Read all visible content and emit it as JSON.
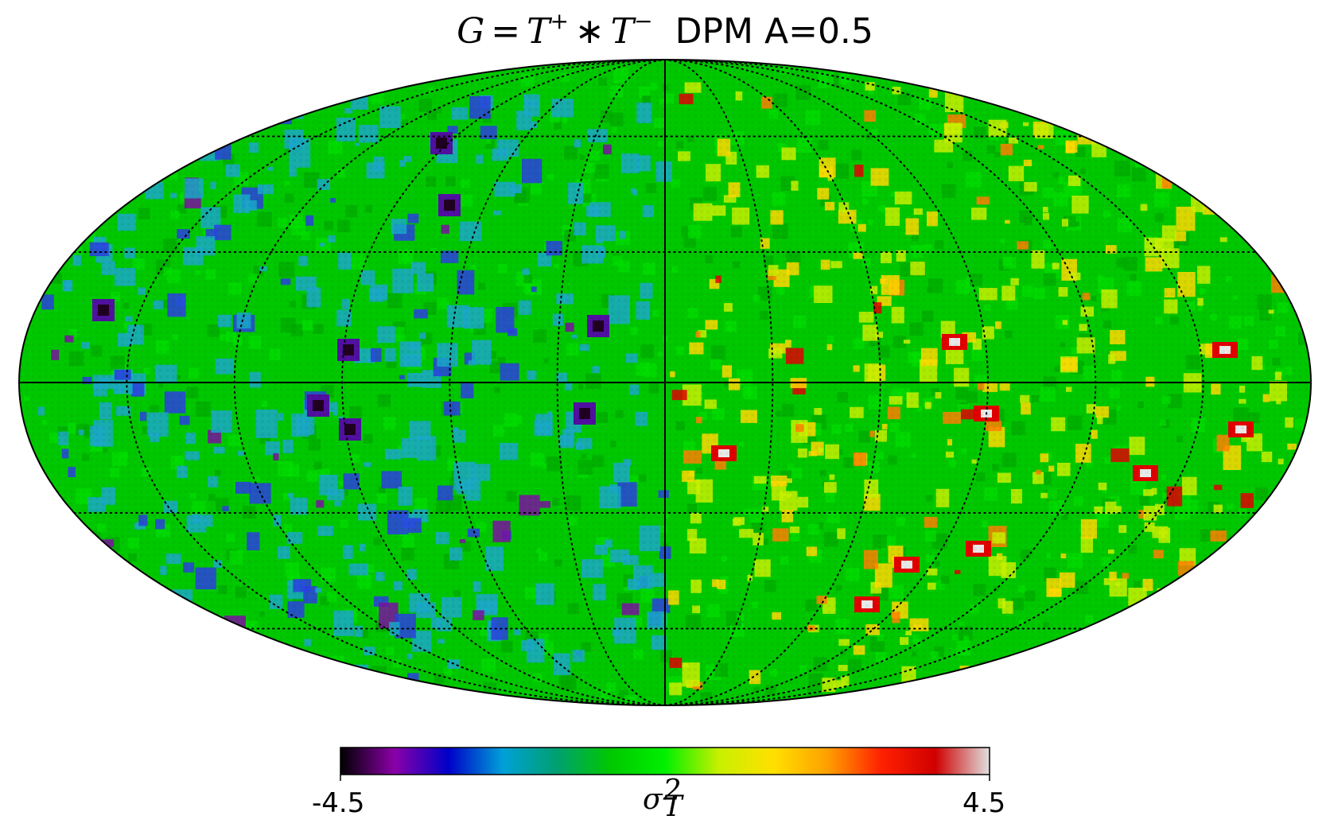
{
  "title": {
    "formula_lhs": "G",
    "formula_equals": "=",
    "formula_t1": "T",
    "formula_t1_sup": "+",
    "formula_op": "∗",
    "formula_t2": "T",
    "formula_t2_sup": "−",
    "label": "DPM A=0.5"
  },
  "map": {
    "projection": "mollweide",
    "graticule_meridians_deg": [
      -150,
      -120,
      -90,
      -60,
      -30,
      0,
      30,
      60,
      90,
      120,
      150
    ],
    "graticule_parallels_deg": [
      -60,
      -30,
      0,
      30,
      60
    ],
    "background_color": "#00c800",
    "features": {
      "negative_region": "left hemisphere, cyan/blue/purple patches",
      "positive_region": "right hemisphere, yellow/red/white patches"
    }
  },
  "colorbar": {
    "min_label": "-4.5",
    "max_label": "4.5",
    "unit_symbol": "σ",
    "unit_sup": "2",
    "unit_sub": "T",
    "colors": [
      "#000000",
      "#8a00a8",
      "#0000c8",
      "#00a0d8",
      "#00a070",
      "#00c800",
      "#00f000",
      "#c8f000",
      "#ffe000",
      "#ffa000",
      "#ff2000",
      "#d00000",
      "#e0e0e0"
    ]
  }
}
